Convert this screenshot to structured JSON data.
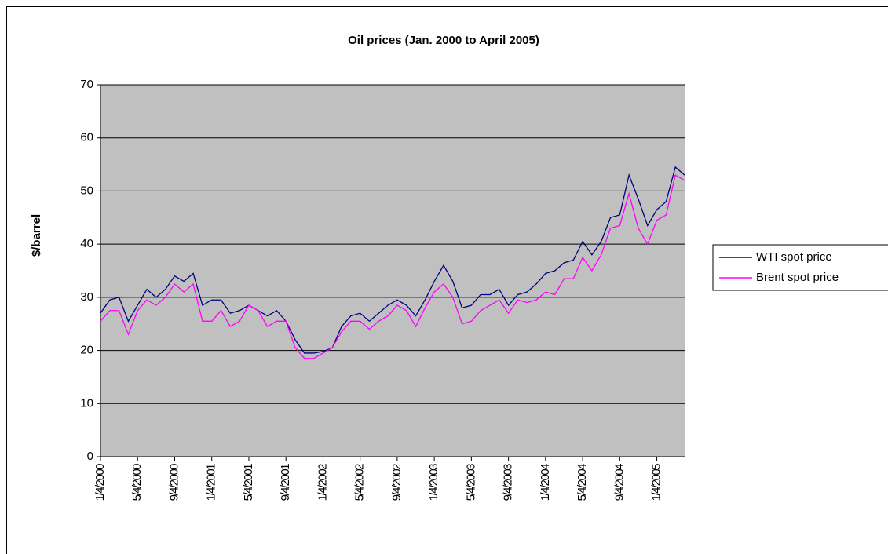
{
  "chart_data": {
    "type": "line",
    "title": "Oil prices (Jan. 2000 to April 2005)",
    "y_label": "$/barrel",
    "categories": [
      "1/4/2000",
      null,
      null,
      null,
      "5/4/2000",
      null,
      null,
      null,
      "9/4/2000",
      null,
      null,
      null,
      "1/4/2001",
      null,
      null,
      null,
      "5/4/2001",
      null,
      null,
      null,
      "9/4/2001",
      null,
      null,
      null,
      "1/4/2002",
      null,
      null,
      null,
      "5/4/2002",
      null,
      null,
      null,
      "9/4/2002",
      null,
      null,
      null,
      "1/4/2003",
      null,
      null,
      null,
      "5/4/2003",
      null,
      null,
      null,
      "9/4/2003",
      null,
      null,
      null,
      "1/4/2004",
      null,
      null,
      null,
      "5/4/2004",
      null,
      null,
      null,
      "9/4/2004",
      null,
      null,
      null,
      "1/4/2005",
      null,
      null,
      null
    ],
    "series": [
      {
        "name": "WTI spot price",
        "color": "#000080",
        "values": [
          27,
          29.5,
          30,
          25.5,
          28.5,
          31.5,
          30,
          31.5,
          34,
          33,
          34.5,
          28.5,
          29.5,
          29.5,
          27,
          27.5,
          28.5,
          27.5,
          26.5,
          27.5,
          25.5,
          22,
          19.5,
          19.5,
          19.8,
          20.5,
          24.5,
          26.5,
          27,
          25.5,
          27,
          28.5,
          29.5,
          28.5,
          26.5,
          29.5,
          33,
          36,
          33,
          28,
          28.5,
          30.5,
          30.5,
          31.5,
          28.5,
          30.5,
          31,
          32.5,
          34.5,
          35,
          36.5,
          37,
          40.5,
          38,
          40.5,
          45,
          45.5,
          53,
          48.5,
          43.5,
          46.5,
          48,
          54.5,
          53
        ]
      },
      {
        "name": "Brent spot price",
        "color": "#ff00ff",
        "values": [
          25.5,
          27.5,
          27.5,
          23,
          27.5,
          29.5,
          28.5,
          30,
          32.5,
          31,
          32.5,
          25.5,
          25.5,
          27.5,
          24.5,
          25.5,
          28.5,
          27.5,
          24.5,
          25.5,
          25.5,
          20.5,
          18.5,
          18.5,
          19.5,
          20.5,
          23.5,
          25.5,
          25.5,
          24,
          25.5,
          26.5,
          28.5,
          27.5,
          24.5,
          28,
          31,
          32.5,
          30,
          25,
          25.5,
          27.5,
          28.5,
          29.5,
          27,
          29.5,
          29,
          29.5,
          31,
          30.5,
          33.5,
          33.5,
          37.5,
          35,
          38,
          43,
          43.5,
          49.5,
          43,
          40,
          44.5,
          45.5,
          53,
          52
        ]
      }
    ],
    "ylim": [
      0,
      70
    ],
    "yticks": [
      0,
      10,
      20,
      30,
      40,
      50,
      60,
      70
    ],
    "grid": true,
    "legend": "right",
    "plot_background": "#c0c0c0"
  }
}
